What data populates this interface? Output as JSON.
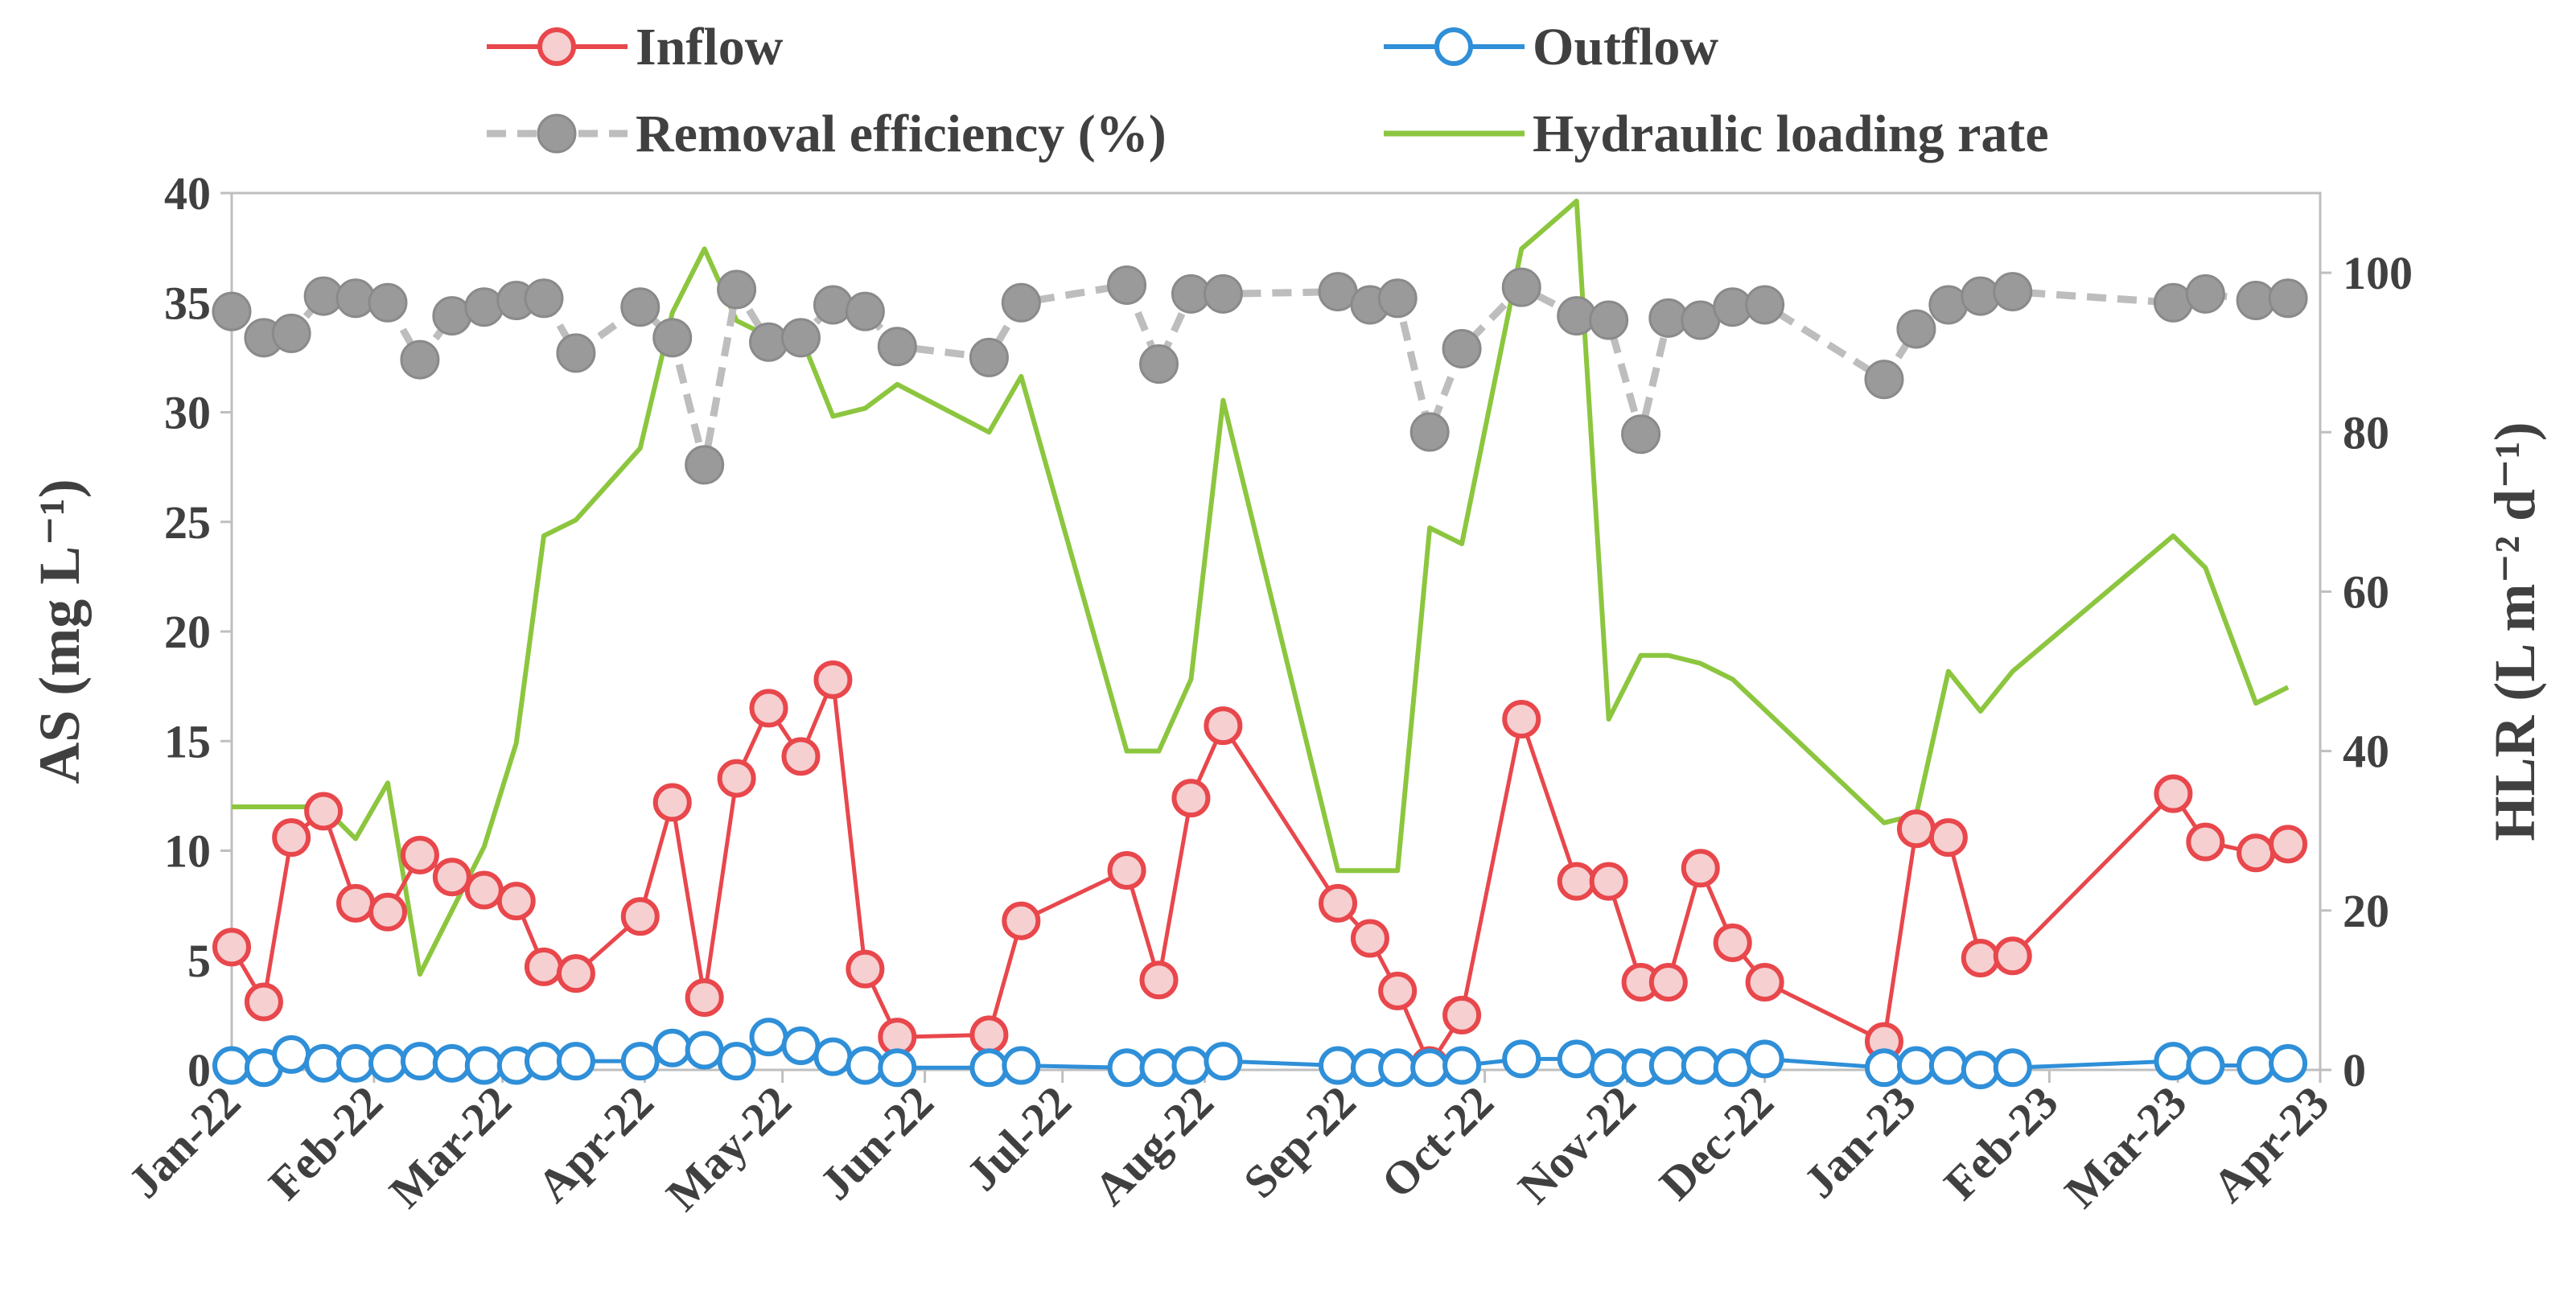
{
  "chart_data": {
    "type": "line",
    "title": "",
    "x_axis": {
      "type": "date",
      "range": [
        "2022-01-01",
        "2023-04-01"
      ],
      "tick_labels": [
        "Jan-22",
        "Feb-22",
        "Mar-22",
        "Apr-22",
        "May-22",
        "Jun-22",
        "Jul-22",
        "Aug-22",
        "Sep-22",
        "Oct-22",
        "Nov-22",
        "Dec-22",
        "Jan-23",
        "Feb-23",
        "Mar-23",
        "Apr-23"
      ]
    },
    "y_left": {
      "label": "AS (mg L⁻¹)",
      "ylim": [
        0,
        40
      ],
      "ticks": [
        0,
        5,
        10,
        15,
        20,
        25,
        30,
        35,
        40
      ]
    },
    "y_right": {
      "label": "HLR (L m⁻² d⁻¹)",
      "ylim": [
        0,
        110
      ],
      "ticks": [
        0,
        20,
        40,
        60,
        80,
        100
      ]
    },
    "legend": {
      "placement": "top",
      "entries": [
        "Inflow",
        "Outflow",
        "Removal efficiency (%)",
        "Hydraulic loading rate"
      ]
    },
    "colors": {
      "inflow": "#e8474c",
      "inflow_fill": "#f6cfd0",
      "outflow": "#2f8fd8",
      "outflow_fill": "#ffffff",
      "removal": "#9a9a9a",
      "removal_line": "#bdbdbd",
      "hlr": "#8cc63f",
      "axis": "#bfbfbf",
      "text": "#404040"
    },
    "series": [
      {
        "name": "Inflow",
        "axis": "left",
        "dates": [
          "2022-01-01",
          "2022-01-08",
          "2022-01-14",
          "2022-01-21",
          "2022-01-28",
          "2022-02-04",
          "2022-02-11",
          "2022-02-18",
          "2022-02-25",
          "2022-03-04",
          "2022-03-10",
          "2022-03-17",
          "2022-03-31",
          "2022-04-07",
          "2022-04-14",
          "2022-04-21",
          "2022-04-28",
          "2022-05-05",
          "2022-05-12",
          "2022-05-19",
          "2022-05-26",
          "2022-06-15",
          "2022-06-22",
          "2022-07-15",
          "2022-07-22",
          "2022-07-29",
          "2022-08-05",
          "2022-08-30",
          "2022-09-06",
          "2022-09-12",
          "2022-09-19",
          "2022-09-26",
          "2022-10-09",
          "2022-10-21",
          "2022-10-28",
          "2022-11-04",
          "2022-11-10",
          "2022-11-17",
          "2022-11-24",
          "2022-12-01",
          "2022-12-27",
          "2023-01-03",
          "2023-01-10",
          "2023-01-17",
          "2023-01-24",
          "2023-02-28",
          "2023-03-07",
          "2023-03-18",
          "2023-03-25"
        ],
        "values": [
          5.6,
          3.1,
          10.6,
          11.8,
          7.6,
          7.2,
          9.8,
          8.8,
          8.2,
          7.7,
          4.7,
          4.4,
          7.0,
          12.2,
          3.3,
          13.3,
          16.5,
          14.3,
          17.8,
          4.6,
          1.5,
          1.6,
          6.8,
          9.1,
          4.1,
          12.4,
          15.7,
          7.6,
          6.0,
          3.6,
          0.2,
          2.5,
          16.0,
          8.6,
          8.6,
          4.0,
          4.0,
          9.2,
          5.8,
          4.0,
          1.3,
          11.0,
          10.6,
          5.1,
          5.2,
          12.6,
          10.4,
          9.9,
          10.3
        ]
      },
      {
        "name": "Outflow",
        "axis": "left",
        "dates": [
          "2022-01-01",
          "2022-01-08",
          "2022-01-14",
          "2022-01-21",
          "2022-01-28",
          "2022-02-04",
          "2022-02-11",
          "2022-02-18",
          "2022-02-25",
          "2022-03-04",
          "2022-03-10",
          "2022-03-17",
          "2022-03-31",
          "2022-04-07",
          "2022-04-14",
          "2022-04-21",
          "2022-04-28",
          "2022-05-05",
          "2022-05-12",
          "2022-05-19",
          "2022-05-26",
          "2022-06-15",
          "2022-06-22",
          "2022-07-15",
          "2022-07-22",
          "2022-07-29",
          "2022-08-05",
          "2022-08-30",
          "2022-09-06",
          "2022-09-12",
          "2022-09-19",
          "2022-09-26",
          "2022-10-09",
          "2022-10-21",
          "2022-10-28",
          "2022-11-04",
          "2022-11-10",
          "2022-11-17",
          "2022-11-24",
          "2022-12-01",
          "2022-12-27",
          "2023-01-03",
          "2023-01-10",
          "2023-01-17",
          "2023-01-24",
          "2023-02-28",
          "2023-03-07",
          "2023-03-18",
          "2023-03-25"
        ],
        "values": [
          0.2,
          0.1,
          0.7,
          0.3,
          0.3,
          0.3,
          0.4,
          0.3,
          0.2,
          0.2,
          0.4,
          0.4,
          0.4,
          1.0,
          0.9,
          0.4,
          1.5,
          1.1,
          0.6,
          0.2,
          0.1,
          0.1,
          0.2,
          0.1,
          0.1,
          0.2,
          0.4,
          0.2,
          0.1,
          0.1,
          0.1,
          0.2,
          0.5,
          0.5,
          0.1,
          0.1,
          0.2,
          0.2,
          0.1,
          0.5,
          0.1,
          0.2,
          0.2,
          0.0,
          0.1,
          0.4,
          0.2,
          0.2,
          0.3
        ]
      },
      {
        "name": "Removal efficiency (%)",
        "axis": "left",
        "dates": [
          "2022-01-01",
          "2022-01-08",
          "2022-01-14",
          "2022-01-21",
          "2022-01-28",
          "2022-02-04",
          "2022-02-11",
          "2022-02-18",
          "2022-02-25",
          "2022-03-04",
          "2022-03-10",
          "2022-03-17",
          "2022-03-31",
          "2022-04-07",
          "2022-04-14",
          "2022-04-21",
          "2022-04-28",
          "2022-05-05",
          "2022-05-12",
          "2022-05-19",
          "2022-05-26",
          "2022-06-15",
          "2022-06-22",
          "2022-07-15",
          "2022-07-22",
          "2022-07-29",
          "2022-08-05",
          "2022-08-30",
          "2022-09-06",
          "2022-09-12",
          "2022-09-19",
          "2022-09-26",
          "2022-10-09",
          "2022-10-21",
          "2022-10-28",
          "2022-11-04",
          "2022-11-10",
          "2022-11-17",
          "2022-11-24",
          "2022-12-01",
          "2022-12-27",
          "2023-01-03",
          "2023-01-10",
          "2023-01-17",
          "2023-01-24",
          "2023-02-28",
          "2023-03-07",
          "2023-03-18",
          "2023-03-25"
        ],
        "values": [
          34.6,
          33.4,
          33.6,
          35.3,
          35.2,
          35.0,
          32.4,
          34.4,
          34.8,
          35.1,
          35.2,
          32.7,
          34.8,
          33.4,
          27.6,
          35.6,
          33.2,
          33.4,
          34.9,
          34.6,
          33.0,
          32.5,
          35.0,
          35.8,
          32.2,
          35.4,
          35.4,
          35.5,
          34.9,
          35.2,
          29.1,
          32.9,
          35.7,
          34.4,
          34.2,
          29.0,
          34.3,
          34.2,
          34.8,
          34.9,
          31.5,
          33.8,
          34.9,
          35.3,
          35.5,
          35.0,
          35.4,
          35.1,
          35.2
        ]
      },
      {
        "name": "Hydraulic loading rate",
        "axis": "right",
        "dates": [
          "2022-01-01",
          "2022-01-21",
          "2022-01-28",
          "2022-02-04",
          "2022-02-11",
          "2022-02-25",
          "2022-03-04",
          "2022-03-10",
          "2022-03-17",
          "2022-03-31",
          "2022-04-07",
          "2022-04-14",
          "2022-04-21",
          "2022-04-28",
          "2022-05-05",
          "2022-05-12",
          "2022-05-19",
          "2022-05-26",
          "2022-06-05",
          "2022-06-15",
          "2022-06-22",
          "2022-07-15",
          "2022-07-22",
          "2022-07-29",
          "2022-08-05",
          "2022-08-30",
          "2022-09-06",
          "2022-09-12",
          "2022-09-19",
          "2022-09-26",
          "2022-10-09",
          "2022-10-21",
          "2022-10-28",
          "2022-11-04",
          "2022-11-10",
          "2022-11-17",
          "2022-11-24",
          "2022-12-27",
          "2023-01-03",
          "2023-01-10",
          "2023-01-17",
          "2023-01-24",
          "2023-02-28",
          "2023-03-07",
          "2023-03-18",
          "2023-03-25"
        ],
        "values": [
          33,
          33,
          29,
          36,
          12,
          28,
          41,
          67,
          69,
          78,
          95,
          103,
          94,
          92,
          92,
          82,
          83,
          86,
          83,
          80,
          87,
          40,
          40,
          49,
          84,
          25,
          25,
          25,
          68,
          66,
          103,
          109,
          44,
          52,
          52,
          51,
          49,
          31,
          32,
          50,
          45,
          50,
          67,
          63,
          46,
          48
        ]
      }
    ]
  }
}
